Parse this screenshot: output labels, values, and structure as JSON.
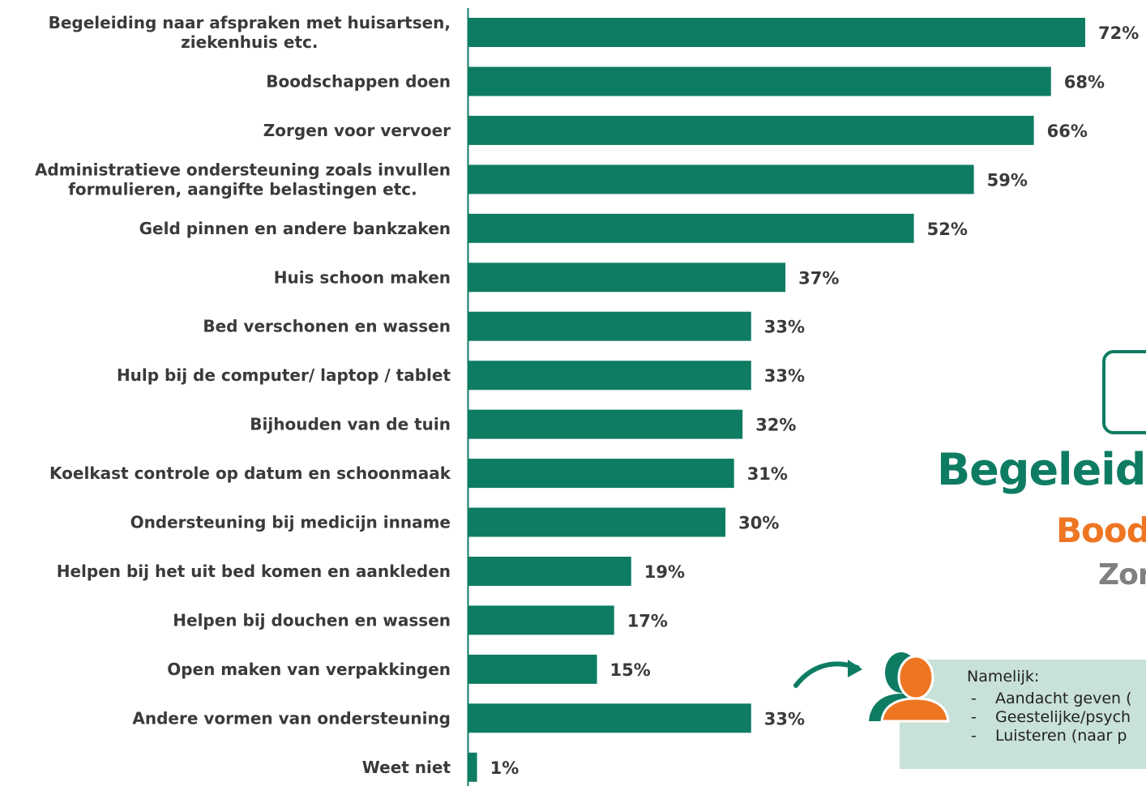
{
  "chart_data": {
    "type": "bar",
    "orientation": "horizontal",
    "categories": [
      [
        "Begeleiding naar afspraken met huisartsen,",
        "ziekenhuis etc."
      ],
      [
        "Boodschappen doen"
      ],
      [
        "Zorgen voor vervoer"
      ],
      [
        "Administratieve ondersteuning zoals invullen",
        "formulieren, aangifte belastingen etc."
      ],
      [
        "Geld pinnen en andere bankzaken"
      ],
      [
        "Huis schoon maken"
      ],
      [
        "Bed verschonen en wassen"
      ],
      [
        "Hulp bij de computer/ laptop / tablet"
      ],
      [
        "Bijhouden van de tuin"
      ],
      [
        "Koelkast controle op datum en schoonmaak"
      ],
      [
        "Ondersteuning bij medicijn inname"
      ],
      [
        "Helpen bij het uit bed komen en aankleden"
      ],
      [
        "Helpen bij douchen en wassen"
      ],
      [
        "Open maken van verpakkingen"
      ],
      [
        "Andere vormen van ondersteuning"
      ],
      [
        "Weet niet"
      ]
    ],
    "values": [
      72,
      68,
      66,
      59,
      52,
      37,
      33,
      33,
      32,
      31,
      30,
      19,
      17,
      15,
      33,
      1
    ],
    "value_labels": [
      "72%",
      "68%",
      "66%",
      "59%",
      "52%",
      "37%",
      "33%",
      "33%",
      "32%",
      "31%",
      "30%",
      "19%",
      "17%",
      "15%",
      "33%",
      "1%"
    ],
    "xlim": [
      0,
      100
    ],
    "bar_color": "#0e7c63",
    "label_color": "#3a3a3a",
    "title": "",
    "xlabel": "",
    "ylabel": "",
    "grid": false,
    "legend": false
  },
  "overlay": {
    "headline_1": "Begeleidi",
    "headline_2": "Bood",
    "headline_3": "Zor",
    "note_heading": "Namelijk:",
    "note_dash": "-",
    "note_items": [
      "Aandacht geven (",
      "Geestelijke/psych",
      "Luisteren (naar p"
    ],
    "colors": {
      "green": "#0e7c63",
      "orange": "#ee7623",
      "grey": "#808080",
      "note_background": "#c8e1d9"
    },
    "icons": [
      "curved-arrow-icon",
      "people-icon"
    ]
  }
}
